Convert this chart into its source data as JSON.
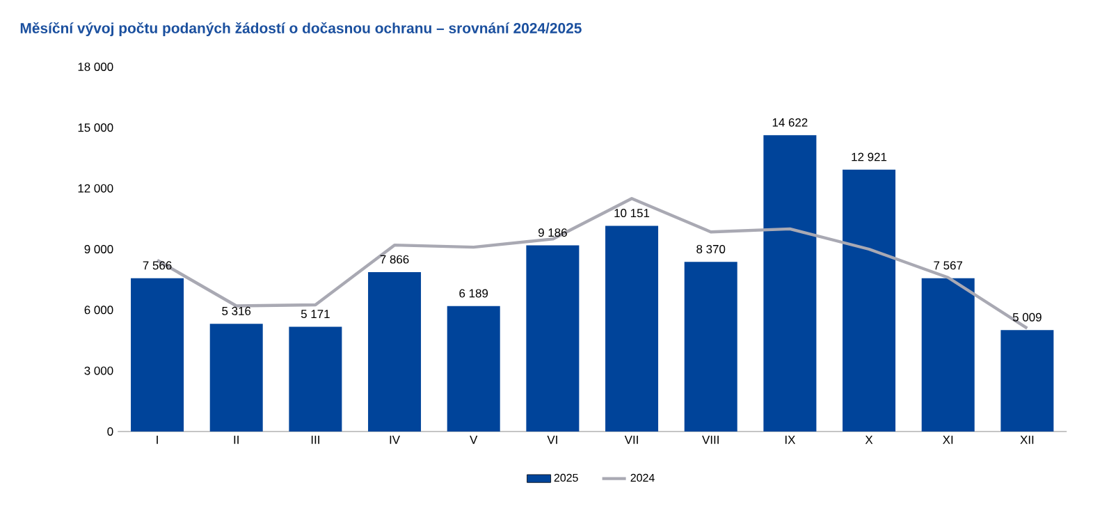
{
  "chart_data": {
    "type": "bar",
    "title": "Měsíční vývoj počtu podaných žádostí o dočasnou ochranu – srovnání 2024/2025",
    "categories": [
      "I",
      "II",
      "III",
      "IV",
      "V",
      "VI",
      "VII",
      "VIII",
      "IX",
      "X",
      "XI",
      "XII"
    ],
    "series": [
      {
        "name": "2025",
        "color": "#00449a",
        "values": [
          7566,
          5316,
          5171,
          7866,
          6189,
          9186,
          10151,
          8370,
          14622,
          12921,
          7567,
          5009
        ],
        "value_labels": [
          "7 566",
          "5 316",
          "5 171",
          "7 866",
          "6 189",
          "9 186",
          "10 151",
          "8 370",
          "14 622",
          "12 921",
          "7 567",
          "5 009"
        ]
      },
      {
        "name": "2024",
        "type": "line",
        "color": "#a9a9b3",
        "values": [
          8450,
          6200,
          6250,
          9200,
          9100,
          9500,
          11500,
          9850,
          10000,
          9000,
          7600,
          5100
        ]
      }
    ],
    "ylim": [
      0,
      18000
    ],
    "yticks": [
      {
        "value": 0,
        "label": "0"
      },
      {
        "value": 3000,
        "label": "3 000"
      },
      {
        "value": 6000,
        "label": "6 000"
      },
      {
        "value": 9000,
        "label": "9 000"
      },
      {
        "value": 12000,
        "label": "12 000"
      },
      {
        "value": 15000,
        "label": "15 000"
      },
      {
        "value": 18000,
        "label": "18 000"
      }
    ],
    "grid": false,
    "legend": "bottom"
  }
}
